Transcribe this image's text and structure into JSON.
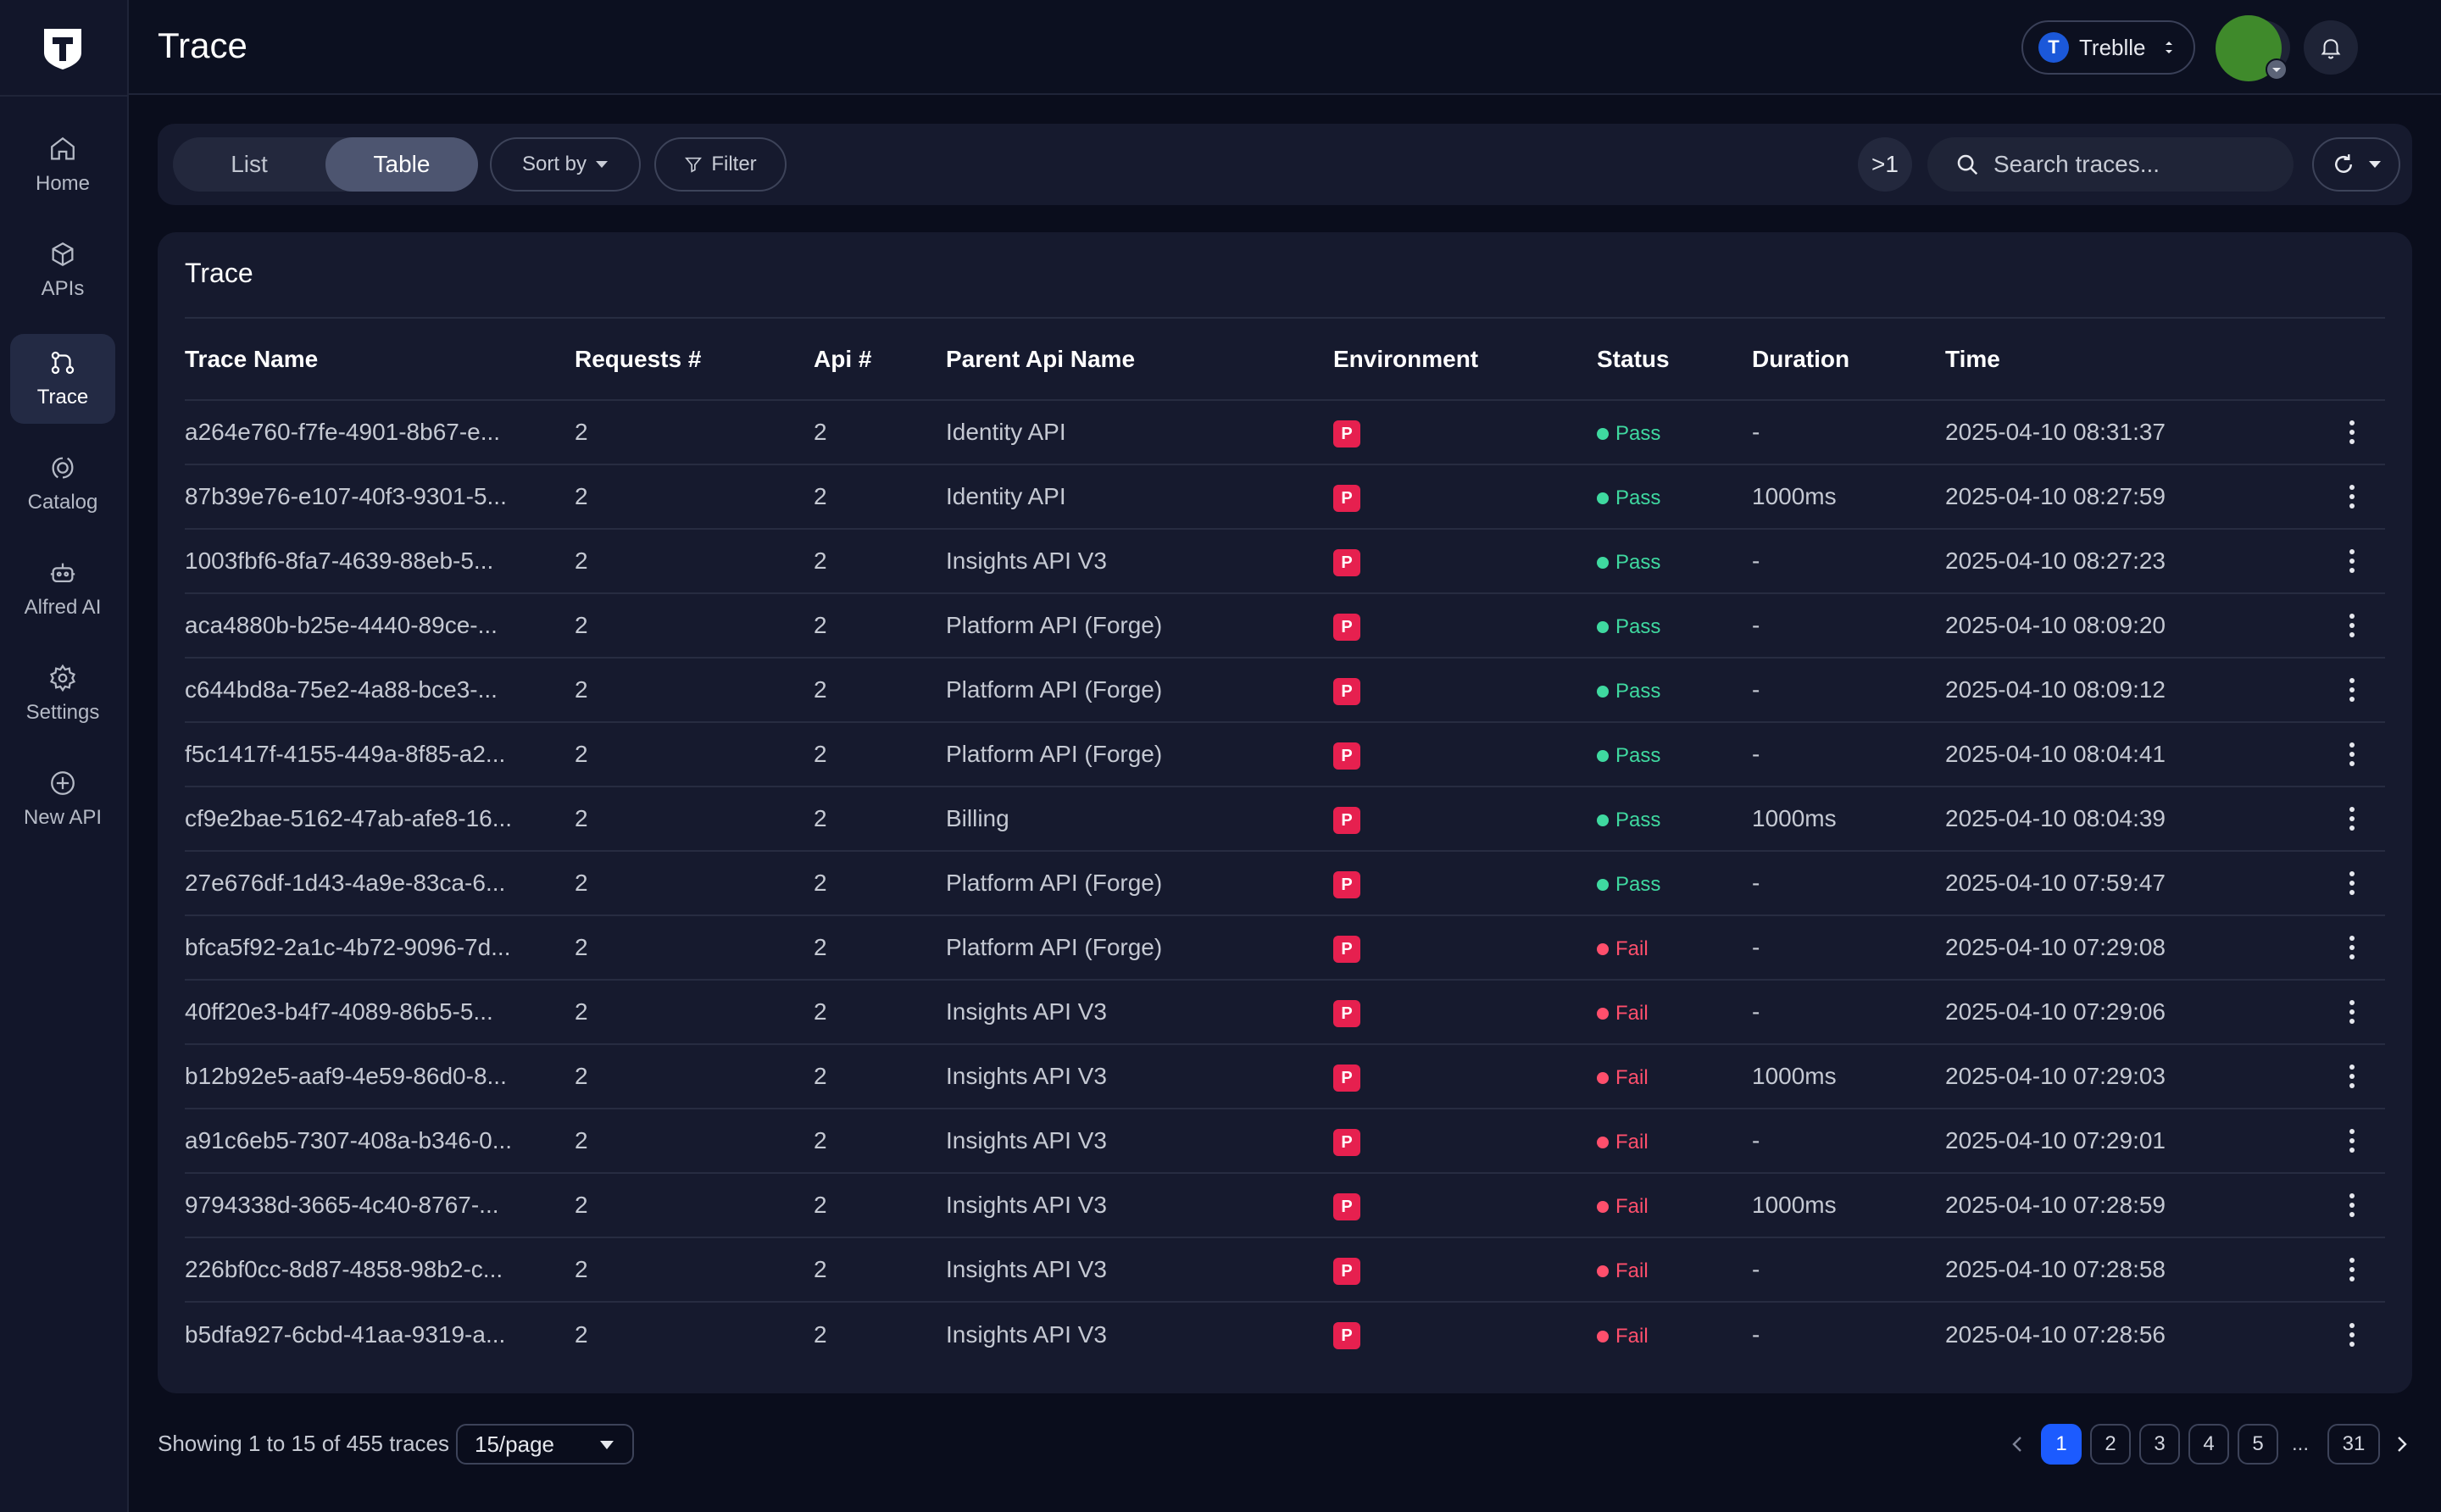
{
  "sidebar": {
    "logo_icon": "trelle-logo-icon",
    "items": [
      {
        "label": "Home",
        "icon": "home-icon"
      },
      {
        "label": "APIs",
        "icon": "cube-icon"
      },
      {
        "label": "Trace",
        "icon": "trace-icon",
        "active": true
      },
      {
        "label": "Catalog",
        "icon": "catalog-icon"
      },
      {
        "label": "Alfred AI",
        "icon": "robot-icon"
      },
      {
        "label": "Settings",
        "icon": "gear-icon"
      },
      {
        "label": "New API",
        "icon": "plus-circle-icon"
      }
    ]
  },
  "header": {
    "title": "Trace",
    "org": "Treblle",
    "help_icon": "question-icon",
    "bell_icon": "bell-icon",
    "avatar_color": "#3f8a2b"
  },
  "toolbar": {
    "view_list": "List",
    "view_table": "Table",
    "sort_label": "Sort by",
    "filter_label": "Filter",
    "prompt_label": ">1",
    "search_placeholder": "Search traces..."
  },
  "card": {
    "title": "Trace",
    "columns": [
      "Trace Name",
      "Requests #",
      "Api #",
      "Parent Api Name",
      "Environment",
      "Status",
      "Duration",
      "Time"
    ],
    "rows": [
      {
        "name": "a264e760-f7fe-4901-8b67-e...",
        "requests": "2",
        "api": "2",
        "parent": "Identity API",
        "env": "P",
        "status": "Pass",
        "duration": "-",
        "time": "2025-04-10 08:31:37"
      },
      {
        "name": "87b39e76-e107-40f3-9301-5...",
        "requests": "2",
        "api": "2",
        "parent": "Identity API",
        "env": "P",
        "status": "Pass",
        "duration": "1000ms",
        "time": "2025-04-10 08:27:59"
      },
      {
        "name": "1003fbf6-8fa7-4639-88eb-5...",
        "requests": "2",
        "api": "2",
        "parent": "Insights API V3",
        "env": "P",
        "status": "Pass",
        "duration": "-",
        "time": "2025-04-10 08:27:23"
      },
      {
        "name": "aca4880b-b25e-4440-89ce-...",
        "requests": "2",
        "api": "2",
        "parent": "Platform API (Forge)",
        "env": "P",
        "status": "Pass",
        "duration": "-",
        "time": "2025-04-10 08:09:20"
      },
      {
        "name": "c644bd8a-75e2-4a88-bce3-...",
        "requests": "2",
        "api": "2",
        "parent": "Platform API (Forge)",
        "env": "P",
        "status": "Pass",
        "duration": "-",
        "time": "2025-04-10 08:09:12"
      },
      {
        "name": "f5c1417f-4155-449a-8f85-a2...",
        "requests": "2",
        "api": "2",
        "parent": "Platform API (Forge)",
        "env": "P",
        "status": "Pass",
        "duration": "-",
        "time": "2025-04-10 08:04:41"
      },
      {
        "name": "cf9e2bae-5162-47ab-afe8-16...",
        "requests": "2",
        "api": "2",
        "parent": "Billing",
        "env": "P",
        "status": "Pass",
        "duration": "1000ms",
        "time": "2025-04-10 08:04:39"
      },
      {
        "name": "27e676df-1d43-4a9e-83ca-6...",
        "requests": "2",
        "api": "2",
        "parent": "Platform API (Forge)",
        "env": "P",
        "status": "Pass",
        "duration": "-",
        "time": "2025-04-10 07:59:47"
      },
      {
        "name": "bfca5f92-2a1c-4b72-9096-7d...",
        "requests": "2",
        "api": "2",
        "parent": "Platform API (Forge)",
        "env": "P",
        "status": "Fail",
        "duration": "-",
        "time": "2025-04-10 07:29:08"
      },
      {
        "name": "40ff20e3-b4f7-4089-86b5-5...",
        "requests": "2",
        "api": "2",
        "parent": "Insights API V3",
        "env": "P",
        "status": "Fail",
        "duration": "-",
        "time": "2025-04-10 07:29:06"
      },
      {
        "name": "b12b92e5-aaf9-4e59-86d0-8...",
        "requests": "2",
        "api": "2",
        "parent": "Insights API V3",
        "env": "P",
        "status": "Fail",
        "duration": "1000ms",
        "time": "2025-04-10 07:29:03"
      },
      {
        "name": "a91c6eb5-7307-408a-b346-0...",
        "requests": "2",
        "api": "2",
        "parent": "Insights API V3",
        "env": "P",
        "status": "Fail",
        "duration": "-",
        "time": "2025-04-10 07:29:01"
      },
      {
        "name": "9794338d-3665-4c40-8767-...",
        "requests": "2",
        "api": "2",
        "parent": "Insights API V3",
        "env": "P",
        "status": "Fail",
        "duration": "1000ms",
        "time": "2025-04-10 07:28:59"
      },
      {
        "name": "226bf0cc-8d87-4858-98b2-c...",
        "requests": "2",
        "api": "2",
        "parent": "Insights API V3",
        "env": "P",
        "status": "Fail",
        "duration": "-",
        "time": "2025-04-10 07:28:58"
      },
      {
        "name": "b5dfa927-6cbd-41aa-9319-a...",
        "requests": "2",
        "api": "2",
        "parent": "Insights API V3",
        "env": "P",
        "status": "Fail",
        "duration": "-",
        "time": "2025-04-10 07:28:56"
      }
    ]
  },
  "footer": {
    "showing": "Showing 1 to 15 of 455 traces",
    "per_page": "15/page",
    "pages": [
      "1",
      "2",
      "3",
      "4",
      "5"
    ],
    "ellipsis": "...",
    "last_page": "31",
    "current_page": "1"
  },
  "colors": {
    "pass": "#3fd9a0",
    "fail": "#ff4f6c",
    "env_badge": "#e6204f",
    "accent": "#1c5bff"
  }
}
